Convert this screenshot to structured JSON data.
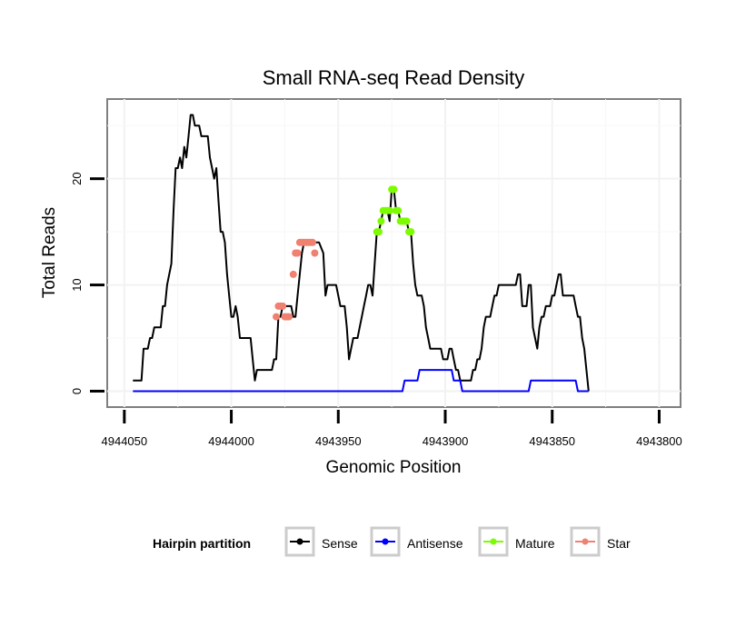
{
  "chart_data": {
    "type": "line",
    "title": "Small RNA-seq Read Density",
    "xlabel": "Genomic Position",
    "ylabel": "Total Reads",
    "x_reversed": true,
    "xlim": [
      4944058,
      4943790
    ],
    "ylim": [
      -1.5,
      27.5
    ],
    "x_ticks": [
      4944050,
      4944000,
      4943950,
      4943900,
      4943850,
      4943800
    ],
    "x_tick_labels": [
      "4944050",
      "4944000",
      "4943950",
      "4943900",
      "4943850",
      "4943800"
    ],
    "y_ticks": [
      0,
      10,
      20
    ],
    "y_tick_labels": [
      "0",
      "10",
      "20"
    ],
    "grid": true,
    "legend": {
      "title": "Hairpin partition",
      "position": "bottom",
      "entries": [
        {
          "label": "Sense",
          "color": "#000000"
        },
        {
          "label": "Antisense",
          "color": "#0000ff"
        },
        {
          "label": "Mature",
          "color": "#7cfc00"
        },
        {
          "label": "Star",
          "color": "#f08070"
        }
      ]
    },
    "series": [
      {
        "name": "Sense",
        "color": "#000000",
        "style": "line",
        "points": [
          [
            4944046,
            1
          ],
          [
            4944042,
            1
          ],
          [
            4944041,
            4
          ],
          [
            4944039,
            4
          ],
          [
            4944038,
            5
          ],
          [
            4944037,
            5
          ],
          [
            4944036,
            6
          ],
          [
            4944033,
            6
          ],
          [
            4944032,
            8
          ],
          [
            4944031,
            8
          ],
          [
            4944030,
            10
          ],
          [
            4944028,
            12
          ],
          [
            4944027,
            17
          ],
          [
            4944026,
            21
          ],
          [
            4944025,
            21
          ],
          [
            4944024,
            22
          ],
          [
            4944023,
            21
          ],
          [
            4944022,
            23
          ],
          [
            4944021,
            22
          ],
          [
            4944020,
            24
          ],
          [
            4944019,
            26
          ],
          [
            4944018,
            26
          ],
          [
            4944017,
            25
          ],
          [
            4944015,
            25
          ],
          [
            4944014,
            24
          ],
          [
            4944011,
            24
          ],
          [
            4944010,
            22
          ],
          [
            4944009,
            21
          ],
          [
            4944008,
            20
          ],
          [
            4944007,
            21
          ],
          [
            4944006,
            18
          ],
          [
            4944005,
            15
          ],
          [
            4944004,
            15
          ],
          [
            4944003,
            14
          ],
          [
            4944002,
            11
          ],
          [
            4944001,
            9
          ],
          [
            4944000,
            7
          ],
          [
            4943999,
            7
          ],
          [
            4943998,
            8
          ],
          [
            4943997,
            7
          ],
          [
            4943996,
            5
          ],
          [
            4943991,
            5
          ],
          [
            4943990,
            3
          ],
          [
            4943989,
            1
          ],
          [
            4943988,
            2
          ],
          [
            4943981,
            2
          ],
          [
            4943980,
            3
          ],
          [
            4943979,
            3
          ],
          [
            4943978,
            7
          ],
          [
            4943977,
            7
          ],
          [
            4943976,
            8
          ],
          [
            4943972,
            8
          ],
          [
            4943971,
            7
          ],
          [
            4943970,
            7
          ],
          [
            4943969,
            9
          ],
          [
            4943968,
            11
          ],
          [
            4943967,
            13
          ],
          [
            4943966,
            14
          ],
          [
            4943959,
            14
          ],
          [
            4943957,
            13
          ],
          [
            4943956,
            9
          ],
          [
            4943955,
            10
          ],
          [
            4943951,
            10
          ],
          [
            4943950,
            9
          ],
          [
            4943949,
            8
          ],
          [
            4943947,
            8
          ],
          [
            4943946,
            6
          ],
          [
            4943945,
            3
          ],
          [
            4943944,
            4
          ],
          [
            4943943,
            5
          ],
          [
            4943941,
            5
          ],
          [
            4943940,
            6
          ],
          [
            4943939,
            7
          ],
          [
            4943938,
            8
          ],
          [
            4943937,
            9
          ],
          [
            4943936,
            10
          ],
          [
            4943935,
            10
          ],
          [
            4943934,
            9
          ],
          [
            4943932,
            15
          ],
          [
            4943931,
            15
          ],
          [
            4943930,
            16
          ],
          [
            4943929,
            17
          ],
          [
            4943927,
            17
          ],
          [
            4943926,
            16
          ],
          [
            4943925,
            19
          ],
          [
            4943924,
            19
          ],
          [
            4943923,
            17
          ],
          [
            4943922,
            17
          ],
          [
            4943921,
            16
          ],
          [
            4943918,
            16
          ],
          [
            4943917,
            15
          ],
          [
            4943916,
            15
          ],
          [
            4943915,
            12
          ],
          [
            4943914,
            10
          ],
          [
            4943913,
            9
          ],
          [
            4943911,
            9
          ],
          [
            4943910,
            8
          ],
          [
            4943909,
            6
          ],
          [
            4943908,
            5
          ],
          [
            4943907,
            4
          ],
          [
            4943902,
            4
          ],
          [
            4943901,
            3
          ],
          [
            4943899,
            3
          ],
          [
            4943898,
            4
          ],
          [
            4943897,
            4
          ],
          [
            4943896,
            3
          ],
          [
            4943895,
            2
          ],
          [
            4943894,
            2
          ],
          [
            4943893,
            1
          ],
          [
            4943888,
            1
          ],
          [
            4943887,
            2
          ],
          [
            4943886,
            2
          ],
          [
            4943885,
            3
          ],
          [
            4943884,
            3
          ],
          [
            4943883,
            4
          ],
          [
            4943882,
            6
          ],
          [
            4943881,
            7
          ],
          [
            4943879,
            7
          ],
          [
            4943878,
            8
          ],
          [
            4943877,
            9
          ],
          [
            4943876,
            9
          ],
          [
            4943875,
            10
          ],
          [
            4943867,
            10
          ],
          [
            4943866,
            11
          ],
          [
            4943865,
            11
          ],
          [
            4943864,
            8
          ],
          [
            4943862,
            8
          ],
          [
            4943861,
            10
          ],
          [
            4943860,
            10
          ],
          [
            4943859,
            6
          ],
          [
            4943858,
            5
          ],
          [
            4943857,
            4
          ],
          [
            4943856,
            6
          ],
          [
            4943855,
            7
          ],
          [
            4943854,
            7
          ],
          [
            4943853,
            8
          ],
          [
            4943851,
            8
          ],
          [
            4943850,
            9
          ],
          [
            4943849,
            9
          ],
          [
            4943848,
            10
          ],
          [
            4943847,
            11
          ],
          [
            4943846,
            11
          ],
          [
            4943845,
            9
          ],
          [
            4943840,
            9
          ],
          [
            4943839,
            8
          ],
          [
            4943838,
            7
          ],
          [
            4943837,
            7
          ],
          [
            4943836,
            5
          ],
          [
            4943835,
            4
          ],
          [
            4943834,
            2
          ],
          [
            4943833,
            0
          ]
        ]
      },
      {
        "name": "Antisense",
        "color": "#0000ff",
        "style": "line",
        "points": [
          [
            4944046,
            0
          ],
          [
            4943920,
            0
          ],
          [
            4943919,
            1
          ],
          [
            4943913,
            1
          ],
          [
            4943912,
            2
          ],
          [
            4943897,
            2
          ],
          [
            4943896,
            1
          ],
          [
            4943893,
            1
          ],
          [
            4943892,
            0
          ],
          [
            4943861,
            0
          ],
          [
            4943860,
            1
          ],
          [
            4943839,
            1
          ],
          [
            4943838,
            0
          ],
          [
            4943833,
            0
          ]
        ]
      },
      {
        "name": "Mature",
        "color": "#7cfc00",
        "style": "points",
        "points": [
          [
            4943932,
            15
          ],
          [
            4943931,
            15
          ],
          [
            4943930,
            16
          ],
          [
            4943929,
            17
          ],
          [
            4943928,
            17
          ],
          [
            4943927,
            17
          ],
          [
            4943926,
            17
          ],
          [
            4943925,
            19
          ],
          [
            4943924,
            19
          ],
          [
            4943923,
            17
          ],
          [
            4943922,
            17
          ],
          [
            4943921,
            16
          ],
          [
            4943920,
            16
          ],
          [
            4943919,
            16
          ],
          [
            4943918,
            16
          ],
          [
            4943917,
            15
          ],
          [
            4943916,
            15
          ]
        ]
      },
      {
        "name": "Star",
        "color": "#f08070",
        "style": "points",
        "points": [
          [
            4943979,
            7
          ],
          [
            4943978,
            8
          ],
          [
            4943977,
            8
          ],
          [
            4943976,
            8
          ],
          [
            4943975,
            7
          ],
          [
            4943974,
            7
          ],
          [
            4943973,
            7
          ],
          [
            4943971,
            11
          ],
          [
            4943970,
            13
          ],
          [
            4943969,
            13
          ],
          [
            4943968,
            14
          ],
          [
            4943967,
            14
          ],
          [
            4943966,
            14
          ],
          [
            4943965,
            14
          ],
          [
            4943964,
            14
          ],
          [
            4943963,
            14
          ],
          [
            4943962,
            14
          ],
          [
            4943961,
            13
          ]
        ]
      }
    ]
  }
}
